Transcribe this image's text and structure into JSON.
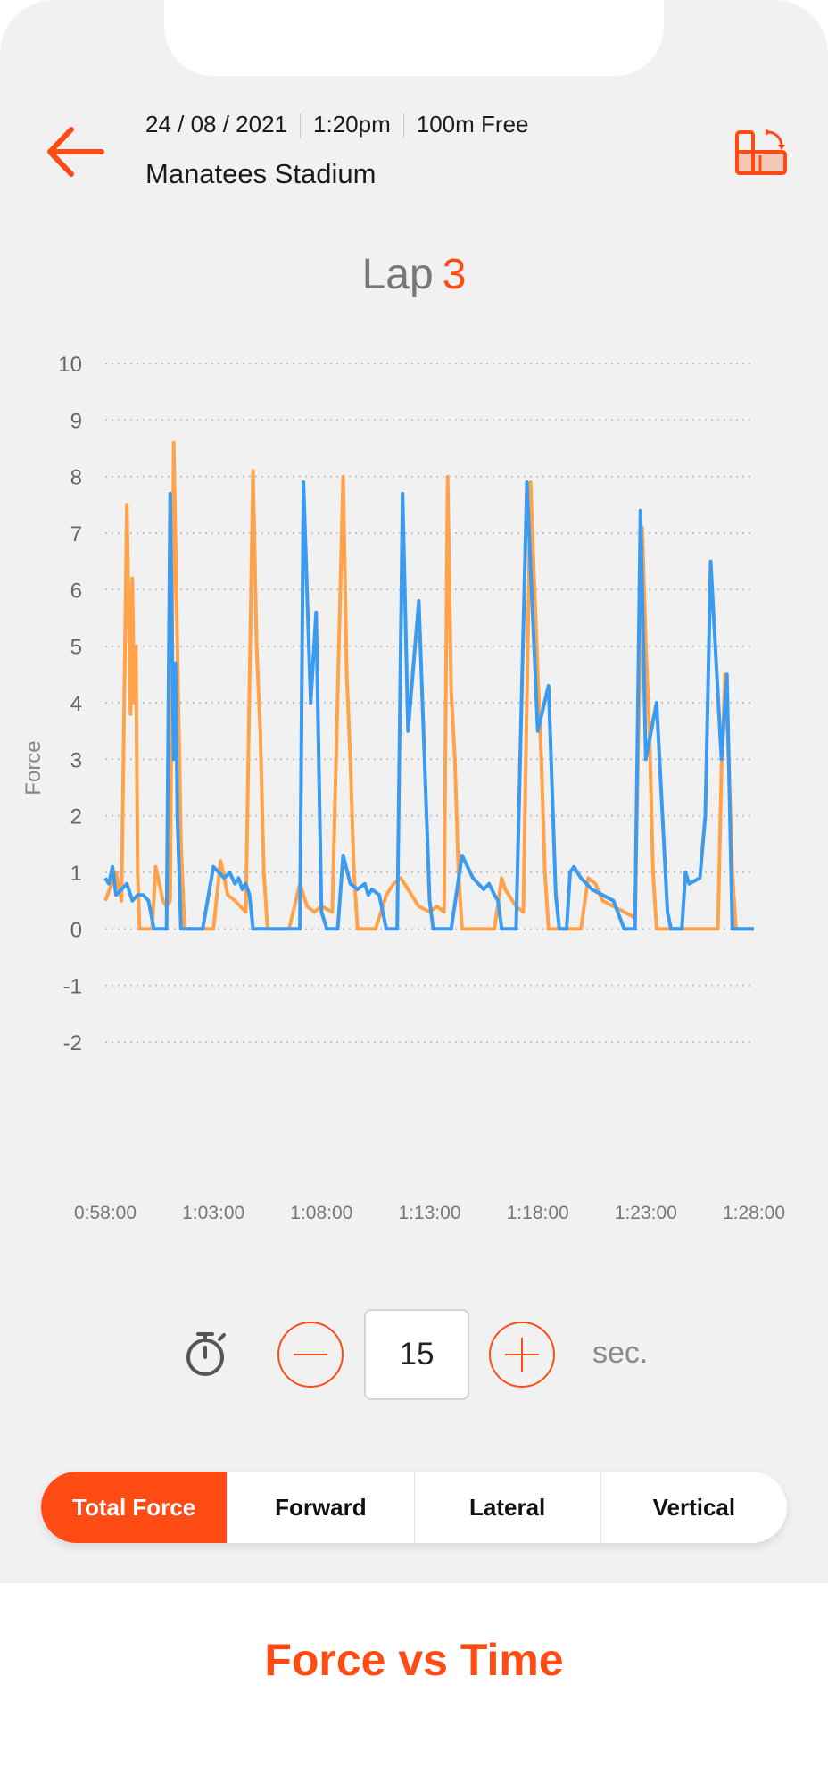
{
  "header": {
    "date": "24 / 08 / 2021",
    "time": "1:20pm",
    "event": "100m Free",
    "venue": "Manatees Stadium"
  },
  "icons": {
    "back": "arrow-left-icon",
    "rotate": "rotate-screen-icon",
    "timer": "stopwatch-icon",
    "minus": "minus-circle-icon",
    "plus": "plus-circle-icon"
  },
  "lap": {
    "label": "Lap",
    "number": "3"
  },
  "interval": {
    "value": "15",
    "unit": "sec."
  },
  "tabs": [
    {
      "label": "Total Force",
      "active": true
    },
    {
      "label": "Forward",
      "active": false
    },
    {
      "label": "Lateral",
      "active": false
    },
    {
      "label": "Vertical",
      "active": false
    }
  ],
  "caption": "Force vs Time",
  "colors": {
    "accent": "#ff4c14",
    "series_orange": "#ffa24a",
    "series_blue": "#3a9bf0",
    "background": "#f1f1f1"
  },
  "chart_data": {
    "type": "line",
    "ylabel": "Force",
    "xlabel": "",
    "title": "",
    "ylim": [
      -2,
      10
    ],
    "yticks": [
      10,
      9,
      8,
      7,
      6,
      5,
      4,
      3,
      2,
      1,
      0,
      -1,
      -2
    ],
    "xlim": [
      "0:58:00",
      "1:28:00"
    ],
    "xticks": [
      "0:58:00",
      "1:03:00",
      "1:08:00",
      "1:13:00",
      "1:18:00",
      "1:23:00",
      "1:28:00"
    ],
    "grid": true,
    "grid_style": "dotted",
    "series": [
      {
        "color": "#ffa24a",
        "x": [
          "0:58:00",
          "0:58:30",
          "0:58:45",
          "0:59:00",
          "0:59:10",
          "0:59:15",
          "0:59:20",
          "0:59:25",
          "0:59:30",
          "0:59:35",
          "0:59:45",
          "1:00:00",
          "1:00:10",
          "1:00:20",
          "1:00:30",
          "1:00:40",
          "1:00:50",
          "1:01:00",
          "1:01:10",
          "1:01:20",
          "1:01:30",
          "1:01:40",
          "1:01:50",
          "1:02:00",
          "1:02:30",
          "1:03:00",
          "1:03:20",
          "1:03:30",
          "1:03:40",
          "1:04:00",
          "1:04:30",
          "1:04:50",
          "1:05:00",
          "1:05:10",
          "1:05:20",
          "1:05:30",
          "1:05:40",
          "1:05:50",
          "1:06:00",
          "1:06:30",
          "1:07:00",
          "1:07:10",
          "1:07:20",
          "1:07:40",
          "1:08:00",
          "1:08:30",
          "1:09:00",
          "1:09:10",
          "1:09:20",
          "1:09:30",
          "1:09:40",
          "1:09:50",
          "1:10:00",
          "1:10:30",
          "1:11:00",
          "1:11:20",
          "1:11:40",
          "1:12:00",
          "1:12:30",
          "1:13:00",
          "1:13:20",
          "1:13:40",
          "1:13:50",
          "1:14:00",
          "1:14:10",
          "1:14:20",
          "1:14:30",
          "1:14:40",
          "1:15:00",
          "1:15:30",
          "1:16:00",
          "1:16:20",
          "1:16:30",
          "1:16:50",
          "1:17:00",
          "1:17:20",
          "1:17:40",
          "1:18:00",
          "1:18:10",
          "1:18:20",
          "1:18:30",
          "1:18:40",
          "1:18:50",
          "1:19:00",
          "1:19:30",
          "1:20:00",
          "1:20:20",
          "1:20:40",
          "1:21:00",
          "1:21:30",
          "1:22:00",
          "1:22:30",
          "1:22:50",
          "1:23:00",
          "1:23:10",
          "1:23:20",
          "1:23:30",
          "1:23:40",
          "1:23:50",
          "1:24:00",
          "1:24:30",
          "1:25:00",
          "1:25:30",
          "1:26:00",
          "1:26:20",
          "1:26:30",
          "1:26:40",
          "1:26:50",
          "1:27:00",
          "1:27:10",
          "1:27:20",
          "1:27:40",
          "1:28:00"
        ],
        "y": [
          0.5,
          1.0,
          0.5,
          7.5,
          3.8,
          6.2,
          4.0,
          5.0,
          1.0,
          0.0,
          0.0,
          0.0,
          0.0,
          1.1,
          0.8,
          0.5,
          0.4,
          0.5,
          8.6,
          5.0,
          1.5,
          0.0,
          0.0,
          0.0,
          0.0,
          0.0,
          1.2,
          0.9,
          0.6,
          0.5,
          0.3,
          8.1,
          5.0,
          3.5,
          1.0,
          0.0,
          0.0,
          0.0,
          0.0,
          0.0,
          0.8,
          0.6,
          0.4,
          0.3,
          0.4,
          0.3,
          8.0,
          4.5,
          3.0,
          1.0,
          0.0,
          0.0,
          0.0,
          0.0,
          0.6,
          0.8,
          0.9,
          0.7,
          0.4,
          0.3,
          0.4,
          0.3,
          8.0,
          4.2,
          3.0,
          1.0,
          0.0,
          0.0,
          0.0,
          0.0,
          0.0,
          0.9,
          0.7,
          0.5,
          0.4,
          0.3,
          7.9,
          4.5,
          3.0,
          1.0,
          0.0,
          0.0,
          0.0,
          0.0,
          0.0,
          0.0,
          0.9,
          0.8,
          0.5,
          0.4,
          0.3,
          0.2,
          7.1,
          5.0,
          3.5,
          1.0,
          0.0,
          0.0,
          0.0,
          0.0,
          0.0,
          0.0,
          0.0,
          0.0,
          0.0,
          2.8,
          4.5,
          3.0,
          1.0,
          0.0,
          0.0,
          0.0,
          0.0
        ]
      },
      {
        "color": "#3a9bf0",
        "x": [
          "0:58:00",
          "0:58:10",
          "0:58:20",
          "0:58:30",
          "0:58:45",
          "0:59:00",
          "0:59:15",
          "0:59:30",
          "0:59:45",
          "1:00:00",
          "1:00:15",
          "1:00:30",
          "1:00:40",
          "1:00:50",
          "1:01:00",
          "1:01:10",
          "1:01:15",
          "1:01:20",
          "1:01:30",
          "1:01:40",
          "1:01:50",
          "1:02:00",
          "1:02:30",
          "1:03:00",
          "1:03:30",
          "1:03:45",
          "1:04:00",
          "1:04:10",
          "1:04:20",
          "1:04:30",
          "1:04:40",
          "1:04:50",
          "1:05:00",
          "1:05:30",
          "1:06:00",
          "1:06:30",
          "1:07:00",
          "1:07:10",
          "1:07:30",
          "1:07:45",
          "1:08:00",
          "1:08:15",
          "1:08:30",
          "1:08:45",
          "1:09:00",
          "1:09:20",
          "1:09:40",
          "1:10:00",
          "1:10:10",
          "1:10:20",
          "1:10:40",
          "1:11:00",
          "1:11:10",
          "1:11:20",
          "1:11:30",
          "1:11:45",
          "1:12:00",
          "1:12:30",
          "1:13:00",
          "1:13:10",
          "1:13:30",
          "1:13:45",
          "1:14:00",
          "1:14:30",
          "1:15:00",
          "1:15:30",
          "1:15:45",
          "1:16:00",
          "1:16:10",
          "1:16:20",
          "1:16:30",
          "1:16:45",
          "1:17:00",
          "1:17:30",
          "1:18:00",
          "1:18:30",
          "1:18:50",
          "1:19:00",
          "1:19:10",
          "1:19:20",
          "1:19:30",
          "1:19:40",
          "1:20:00",
          "1:20:30",
          "1:21:00",
          "1:21:30",
          "1:22:00",
          "1:22:15",
          "1:22:30",
          "1:22:45",
          "1:23:00",
          "1:23:30",
          "1:24:00",
          "1:24:10",
          "1:24:20",
          "1:24:30",
          "1:24:40",
          "1:24:50",
          "1:25:00",
          "1:25:30",
          "1:25:45",
          "1:26:00",
          "1:26:30",
          "1:26:45",
          "1:27:00",
          "1:27:15",
          "1:27:30",
          "1:27:45",
          "1:28:00"
        ],
        "y": [
          0.9,
          0.8,
          1.1,
          0.6,
          0.7,
          0.8,
          0.5,
          0.6,
          0.6,
          0.5,
          0.0,
          0.0,
          0.0,
          0.0,
          7.7,
          3.0,
          4.7,
          2.0,
          0.0,
          0.0,
          0.0,
          0.0,
          0.0,
          1.1,
          0.9,
          1.0,
          0.8,
          0.9,
          0.7,
          0.8,
          0.6,
          0.0,
          0.0,
          0.0,
          0.0,
          0.0,
          0.0,
          7.9,
          4.0,
          5.6,
          0.3,
          0.0,
          0.0,
          0.0,
          1.3,
          0.8,
          0.7,
          0.8,
          0.6,
          0.7,
          0.6,
          0.0,
          0.0,
          0.0,
          0.0,
          7.7,
          3.5,
          5.8,
          0.5,
          0.0,
          0.0,
          0.0,
          0.0,
          1.3,
          0.9,
          0.7,
          0.8,
          0.6,
          0.5,
          0.0,
          0.0,
          0.0,
          0.0,
          7.9,
          3.5,
          4.3,
          0.6,
          0.0,
          0.0,
          0.0,
          1.0,
          1.1,
          0.9,
          0.7,
          0.6,
          0.5,
          0.0,
          0.0,
          0.0,
          7.4,
          3.0,
          4.0,
          0.3,
          0.0,
          0.0,
          0.0,
          0.0,
          1.0,
          0.8,
          0.9,
          2.0,
          6.5,
          3.0,
          4.5,
          0.0,
          0.0,
          0.0,
          0.0,
          0.0
        ]
      }
    ]
  }
}
